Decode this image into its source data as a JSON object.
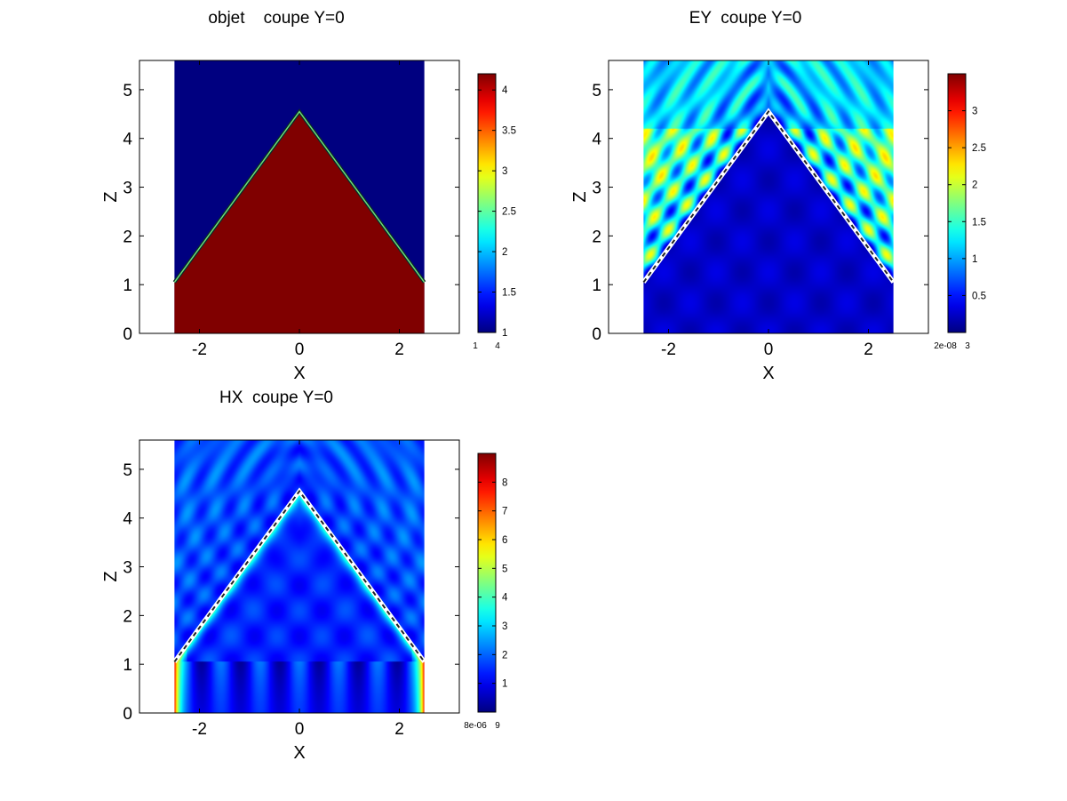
{
  "colormap": "jet",
  "chart_data": [
    {
      "type": "heatmap",
      "title": "objet    coupe Y=0",
      "xlabel": "X",
      "ylabel": "Z",
      "xlim": [
        -3.2,
        3.2
      ],
      "ylim": [
        0,
        5.6
      ],
      "xticks": [
        -2,
        0,
        2
      ],
      "yticks": [
        0,
        1,
        2,
        3,
        4,
        5
      ],
      "grid": false,
      "field": "object",
      "domain_x": [
        -2.5,
        2.5
      ],
      "triangle": {
        "apex": [
          0,
          4.55
        ],
        "base_z": 1.05
      },
      "colorbar": {
        "range": [
          1,
          4.2
        ],
        "ticks": [
          1,
          1.5,
          2,
          2.5,
          3,
          3.5,
          4
        ],
        "tick_labels": [
          "1",
          "1.5",
          "2",
          "2.5",
          "3",
          "3.5",
          "4"
        ],
        "min_label": "1",
        "max_label": "4"
      },
      "inside_value": 4.2,
      "outside_value": 1,
      "interface": "solid-green"
    },
    {
      "type": "heatmap",
      "title": "EY  coupe Y=0",
      "xlabel": "X",
      "ylabel": "Z",
      "xlim": [
        -3.2,
        3.2
      ],
      "ylim": [
        0,
        5.6
      ],
      "xticks": [
        -2,
        0,
        2
      ],
      "yticks": [
        0,
        1,
        2,
        3,
        4,
        5
      ],
      "grid": false,
      "field": "EY",
      "domain_x": [
        -2.5,
        2.5
      ],
      "triangle": {
        "apex": [
          0,
          4.55
        ],
        "base_z": 1.05
      },
      "colorbar": {
        "range": [
          0,
          3.5
        ],
        "ticks": [
          0.5,
          1,
          1.5,
          2,
          2.5,
          3
        ],
        "tick_labels": [
          "0.5",
          "1",
          "1.5",
          "2",
          "2.5",
          "3"
        ],
        "min_label": "2e-08",
        "max_label": "3"
      },
      "interface": "dashed-white"
    },
    {
      "type": "heatmap",
      "title": "HX  coupe Y=0",
      "xlabel": "X",
      "ylabel": "Z",
      "xlim": [
        -3.2,
        3.2
      ],
      "ylim": [
        0,
        5.6
      ],
      "xticks": [
        -2,
        0,
        2
      ],
      "yticks": [
        0,
        1,
        2,
        3,
        4,
        5
      ],
      "grid": false,
      "field": "HX",
      "domain_x": [
        -2.5,
        2.5
      ],
      "triangle": {
        "apex": [
          0,
          4.55
        ],
        "base_z": 1.05
      },
      "colorbar": {
        "range": [
          0,
          9
        ],
        "ticks": [
          1,
          2,
          3,
          4,
          5,
          6,
          7,
          8
        ],
        "tick_labels": [
          "1",
          "2",
          "3",
          "4",
          "5",
          "6",
          "7",
          "8"
        ],
        "min_label": "8e-06",
        "max_label": "9"
      },
      "interface": "dashed-white"
    }
  ]
}
